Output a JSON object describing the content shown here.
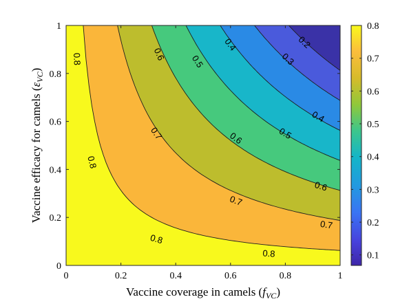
{
  "chart_data": {
    "type": "contour",
    "x": {
      "label_prefix": "Vaccine coverage in camels (",
      "label_symbol": "f",
      "label_sub": "VC",
      "label_suffix": ")",
      "lim": [
        0,
        1
      ],
      "ticks": [
        0,
        0.2,
        0.4,
        0.6,
        0.8,
        1
      ],
      "tick_labels": [
        "0",
        "0.2",
        "0.4",
        "0.6",
        "0.8",
        "1"
      ]
    },
    "y": {
      "label_prefix": "Vaccine efficacy for camels (",
      "label_symbol": "ε",
      "label_sub": "VC",
      "label_suffix": ")",
      "lim": [
        0,
        1
      ],
      "ticks": [
        0,
        0.2,
        0.4,
        0.6,
        0.8,
        1
      ],
      "tick_labels": [
        "0",
        "0.2",
        "0.4",
        "0.6",
        "0.8",
        "1"
      ]
    },
    "model": "z = 0.85 - 0.8 * x * y",
    "contour_levels": [
      0.8,
      0.7,
      0.6,
      0.5,
      0.4,
      0.3,
      0.2
    ],
    "band_colors": [
      "#f8f91d",
      "#fab63a",
      "#bdbd2d",
      "#46c97d",
      "#18b6c9",
      "#2a8ae5",
      "#4a5adc",
      "#3a32a7"
    ],
    "contour_labels": [
      {
        "text": "0.8",
        "at": [
          0.04,
          0.86
        ]
      },
      {
        "text": "0.8",
        "at": [
          0.095,
          0.43
        ]
      },
      {
        "text": "0.8",
        "at": [
          0.33,
          0.11
        ]
      },
      {
        "text": "0.8",
        "at": [
          0.74,
          0.05
        ]
      },
      {
        "text": "0.7",
        "at": [
          0.33,
          0.55
        ]
      },
      {
        "text": "0.7",
        "at": [
          0.62,
          0.27
        ]
      },
      {
        "text": "0.7",
        "at": [
          0.95,
          0.17
        ]
      },
      {
        "text": "0.6",
        "at": [
          0.34,
          0.88
        ]
      },
      {
        "text": "0.6",
        "at": [
          0.62,
          0.53
        ]
      },
      {
        "text": "0.6",
        "at": [
          0.93,
          0.33
        ]
      },
      {
        "text": "0.5",
        "at": [
          0.48,
          0.85
        ]
      },
      {
        "text": "0.5",
        "at": [
          0.8,
          0.55
        ]
      },
      {
        "text": "0.4",
        "at": [
          0.6,
          0.92
        ]
      },
      {
        "text": "0.4",
        "at": [
          0.92,
          0.62
        ]
      },
      {
        "text": "0.3",
        "at": [
          0.81,
          0.86
        ]
      },
      {
        "text": "0.2",
        "at": [
          0.87,
          0.93
        ]
      }
    ],
    "colorbar": {
      "lim": [
        0.068,
        0.8
      ],
      "ticks": [
        0.1,
        0.2,
        0.3,
        0.4,
        0.5,
        0.6,
        0.7,
        0.8
      ],
      "tick_labels": [
        "0.1",
        "0.2",
        "0.3",
        "0.4",
        "0.5",
        "0.6",
        "0.7",
        "0.8"
      ]
    }
  }
}
